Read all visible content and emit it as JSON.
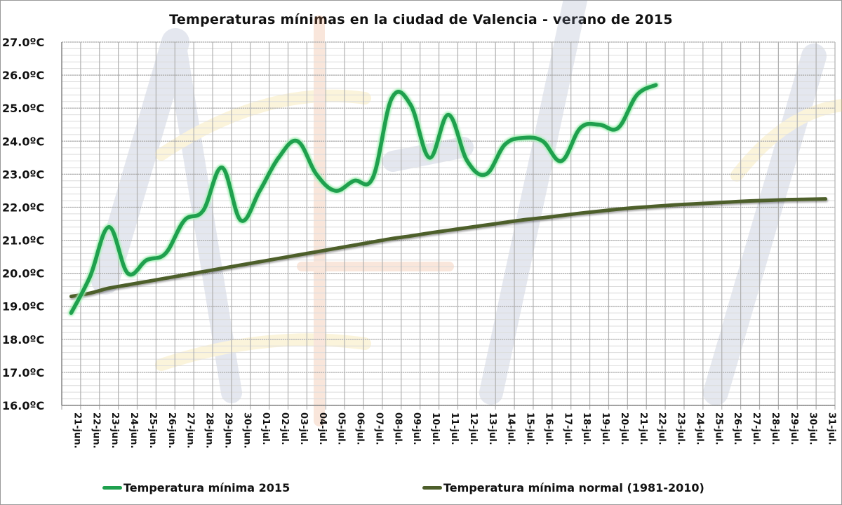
{
  "chart_data": {
    "type": "line",
    "title": "Temperaturas mínimas en la ciudad de Valencia - verano de 2015",
    "xlabel": "",
    "ylabel": "",
    "ylim": [
      16,
      27
    ],
    "y_ticks": [
      "16.0ºC",
      "17.0ºC",
      "18.0ºC",
      "19.0ºC",
      "20.0ºC",
      "21.0ºC",
      "22.0ºC",
      "23.0ºC",
      "24.0ºC",
      "25.0ºC",
      "26.0ºC",
      "27.0ºC"
    ],
    "grid": true,
    "legend_position": "bottom",
    "categories": [
      "21-jun.",
      "22-jun.",
      "23-jun.",
      "24-jun.",
      "25-jun.",
      "26-jun.",
      "27-jun.",
      "28-jun.",
      "29-jun.",
      "30-jun.",
      "01-jul.",
      "02-jul.",
      "03-jul.",
      "04-jul.",
      "05-jul.",
      "06-jul.",
      "07-jul.",
      "08-jul.",
      "09-jul.",
      "10-jul.",
      "11-jul.",
      "12-jul.",
      "13-jul.",
      "14-jul.",
      "15-jul.",
      "16-jul.",
      "17-jul.",
      "18-jul.",
      "19-jul.",
      "20-jul.",
      "21-jul.",
      "22-jul.",
      "23-jul.",
      "24-jul.",
      "25-jul.",
      "26-jul.",
      "27-jul.",
      "28-jul.",
      "29-jul.",
      "30-jul.",
      "31-jul."
    ],
    "series": [
      {
        "name": "Temperatura mínima 2015",
        "color": "#1fa04e",
        "values": [
          18.8,
          19.9,
          21.4,
          20.0,
          20.4,
          20.6,
          21.6,
          21.9,
          23.2,
          21.6,
          22.5,
          23.5,
          24.0,
          23.0,
          22.5,
          22.8,
          22.9,
          25.3,
          25.1,
          23.5,
          24.8,
          23.4,
          23.0,
          23.9,
          24.1,
          24.0,
          23.4,
          24.4,
          24.5,
          24.4,
          25.4,
          25.7,
          null,
          null,
          null,
          null,
          null,
          null,
          null,
          null,
          null
        ]
      },
      {
        "name": "Temperatura mínima normal (1981-2010)",
        "color": "#4d5e2a",
        "values": [
          19.3,
          19.4,
          19.55,
          19.65,
          19.75,
          19.85,
          19.95,
          20.05,
          20.15,
          20.25,
          20.35,
          20.45,
          20.55,
          20.65,
          20.75,
          20.85,
          20.95,
          21.05,
          21.13,
          21.22,
          21.3,
          21.38,
          21.46,
          21.54,
          21.62,
          21.68,
          21.75,
          21.82,
          21.88,
          21.94,
          21.99,
          22.03,
          22.07,
          22.1,
          22.13,
          22.16,
          22.19,
          22.21,
          22.23,
          22.24,
          22.25
        ]
      }
    ]
  }
}
